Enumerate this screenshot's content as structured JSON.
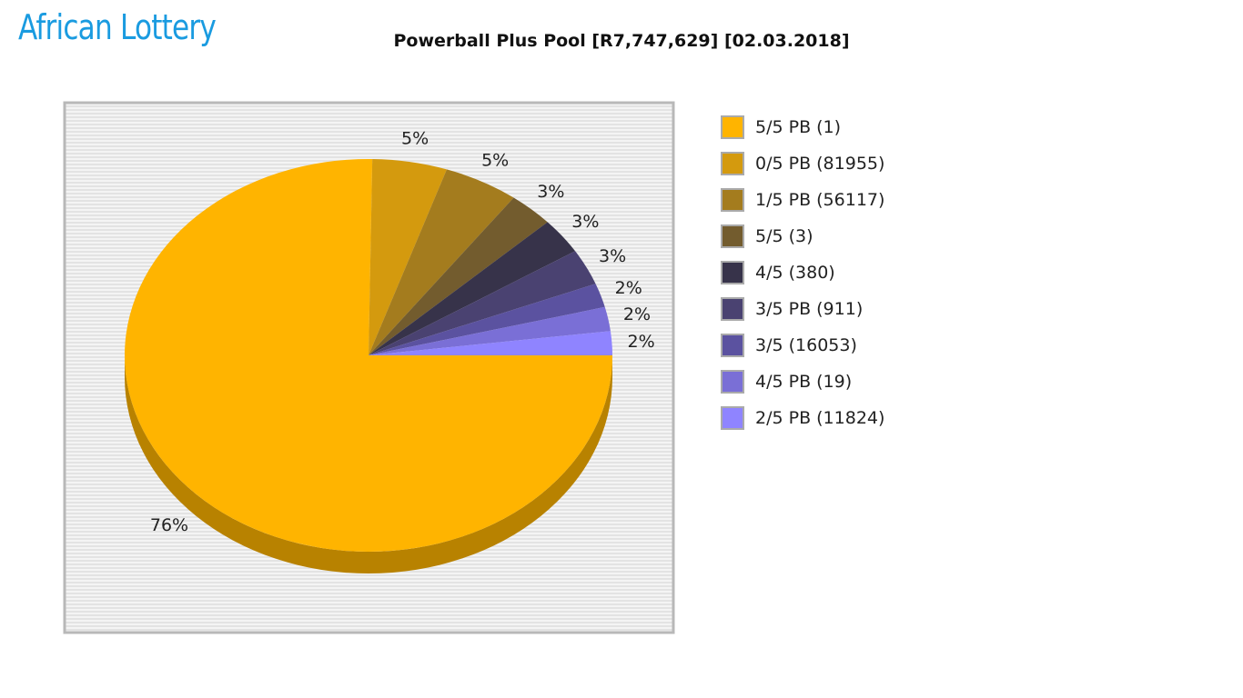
{
  "header": {
    "logo_text": "African Lottery",
    "logo_colors": {
      "text": "#1a9be0",
      "emblem": "#2e7d32"
    }
  },
  "chart_data": {
    "type": "pie",
    "title": "Powerball Plus Pool [R7,747,629] [02.03.2018]",
    "legend_placement": "right",
    "grid": true,
    "slices": [
      {
        "label": "5/5 PB (1)",
        "value": 76,
        "percent_label": "76%",
        "color": "#ffb400"
      },
      {
        "label": "0/5 PB (81955)",
        "value": 5,
        "percent_label": "5%",
        "color": "#d49a0e"
      },
      {
        "label": "1/5 PB (56117)",
        "value": 5,
        "percent_label": "5%",
        "color": "#a47c1e"
      },
      {
        "label": "5/5 (3)",
        "value": 3,
        "percent_label": "3%",
        "color": "#735c2e"
      },
      {
        "label": "4/5 (380)",
        "value": 3,
        "percent_label": "3%",
        "color": "#37334a"
      },
      {
        "label": "3/5 PB (911)",
        "value": 3,
        "percent_label": "3%",
        "color": "#4a4271"
      },
      {
        "label": "3/5 (16053)",
        "value": 2,
        "percent_label": "2%",
        "color": "#5b52a0"
      },
      {
        "label": "4/5 PB (19)",
        "value": 2,
        "percent_label": "2%",
        "color": "#7a6fd6"
      },
      {
        "label": "2/5 PB (11824)",
        "value": 2,
        "percent_label": "2%",
        "color": "#8f84ff"
      }
    ]
  }
}
